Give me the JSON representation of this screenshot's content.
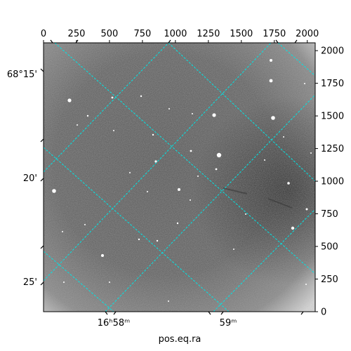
{
  "axes": {
    "pixel_x_ticks": [
      0,
      250,
      500,
      750,
      1000,
      1250,
      1500,
      1750,
      2000
    ],
    "pixel_y_ticks": [
      0,
      250,
      500,
      750,
      1000,
      1250,
      1500,
      1750,
      2000
    ],
    "pixel_range": [
      0,
      2060
    ],
    "dec_labels": [
      "68°15'",
      "20'",
      "25'"
    ],
    "ra_labels": [
      "16ʰ58ᵐ",
      "59ᵐ"
    ],
    "xlabel": "pos.eq.ra"
  },
  "image": {
    "type": "astronomical grayscale image",
    "colormap": "gray",
    "grid_color": "#00e5e5",
    "grid_style": "dashed"
  }
}
